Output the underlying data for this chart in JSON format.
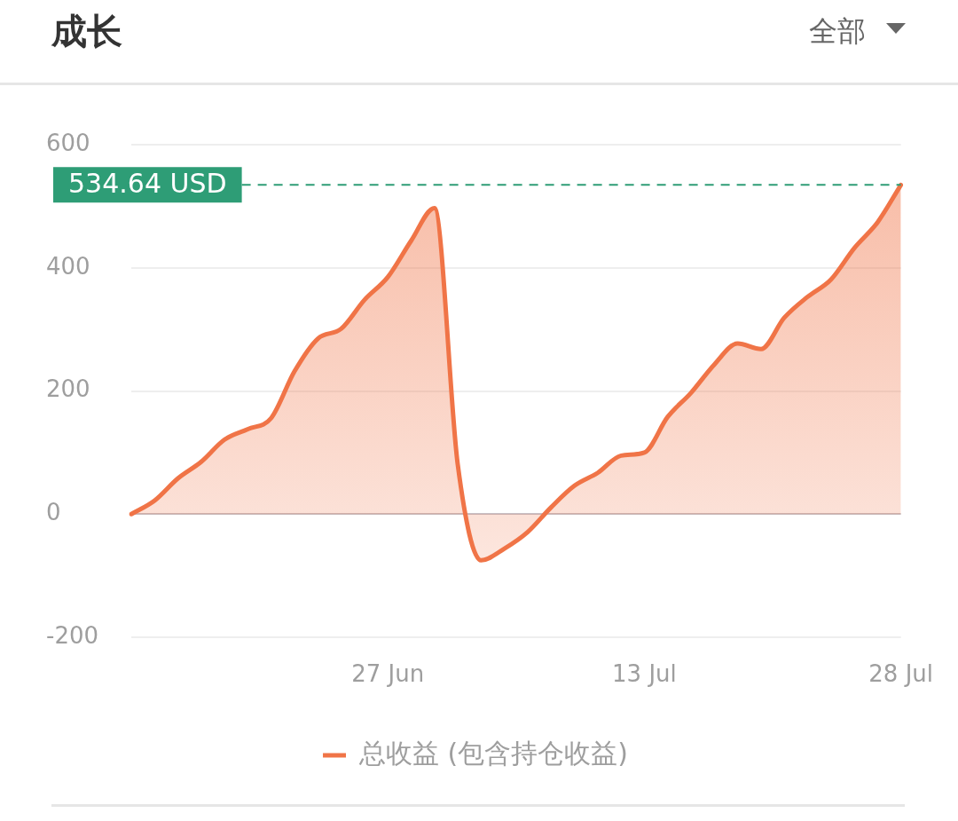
{
  "chart_data": {
    "type": "area",
    "title": "成长",
    "annotations": [
      "全部"
    ],
    "categories": [
      null,
      null,
      null,
      null,
      null,
      null,
      null,
      null,
      null,
      null,
      null,
      "27 Jun",
      null,
      null,
      null,
      null,
      null,
      null,
      null,
      null,
      null,
      null,
      "13 Jul",
      null,
      null,
      null,
      null,
      null,
      null,
      null,
      null,
      null,
      null,
      "28 Jul"
    ],
    "series": [
      {
        "name": "总收益 (包含持仓收益)",
        "color": "#f07447",
        "values": [
          0,
          22,
          58,
          85,
          121,
          138,
          156,
          232,
          285,
          301,
          348,
          385,
          444,
          497,
          80,
          -75,
          -56,
          -29,
          11,
          46,
          67,
          95,
          100,
          158,
          197,
          243,
          277,
          268,
          319,
          353,
          381,
          432,
          474,
          534.64
        ]
      }
    ],
    "ylim": [
      -200,
      600
    ],
    "yticks": [
      -200,
      0,
      200,
      400,
      600
    ],
    "grid": "y",
    "legend": "bottom",
    "marker": "none",
    "ref_lines": [
      {
        "axis": "y",
        "value": 534.64,
        "label": "534.64 USD",
        "color": "#2e9d76",
        "line_style": "dashed"
      }
    ]
  }
}
